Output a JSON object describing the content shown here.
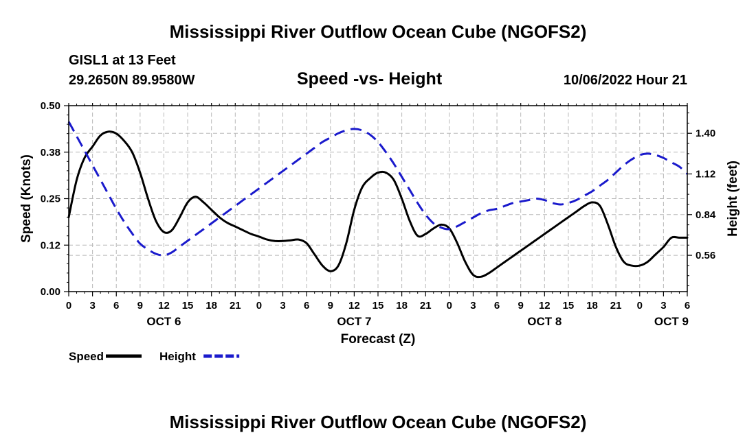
{
  "header": {
    "title_top": "Mississippi River Outflow Ocean Cube (NGOFS2)",
    "station": "GISL1 at 13 Feet",
    "coords": "29.2650N  89.9580W",
    "subtitle": "Speed -vs- Height",
    "datetime": "10/06/2022 Hour 21",
    "title_bottom": "Mississippi River Outflow Ocean Cube (NGOFS2)"
  },
  "chart_data": {
    "type": "line",
    "title": "Speed -vs- Height",
    "xlabel": "Forecast (Z)",
    "ylabel": "Speed (Knots)",
    "y2label": "Height (feet)",
    "x_range": [
      0,
      78
    ],
    "ylim": [
      0,
      0.5
    ],
    "y2lim": [
      0.31,
      1.59
    ],
    "x_tick_hours": [
      0,
      3,
      6,
      9,
      12,
      15,
      18,
      21,
      24,
      27,
      30,
      33,
      36,
      39,
      42,
      45,
      48,
      51,
      54,
      57,
      60,
      63,
      66,
      69,
      72,
      75,
      78
    ],
    "x_tick_labels": [
      "0",
      "3",
      "6",
      "9",
      "12",
      "15",
      "18",
      "21",
      "0",
      "3",
      "6",
      "9",
      "12",
      "15",
      "18",
      "21",
      "0",
      "3",
      "6",
      "9",
      "12",
      "15",
      "18",
      "21",
      "0",
      "3",
      "6"
    ],
    "day_labels": [
      {
        "label": "OCT 6",
        "hour": 12
      },
      {
        "label": "OCT 7",
        "hour": 36
      },
      {
        "label": "OCT 8",
        "hour": 60
      },
      {
        "label": "OCT 9",
        "hour": 76
      }
    ],
    "y_ticks": [
      0.0,
      0.125,
      0.25,
      0.375,
      0.5
    ],
    "y_tick_labels": [
      "0.00",
      "0.12",
      "0.25",
      "0.38",
      "0.50"
    ],
    "y2_ticks": [
      0.56,
      0.84,
      1.12,
      1.4
    ],
    "y2_tick_labels": [
      "0.56",
      "0.84",
      "1.12",
      "1.40"
    ],
    "series": [
      {
        "name": "Speed",
        "axis": "left",
        "color": "#000000",
        "dash": false,
        "x": [
          0,
          1,
          2,
          3,
          4,
          5,
          6,
          7,
          8,
          9,
          10,
          11,
          12,
          13,
          14,
          15,
          16,
          17,
          18,
          19,
          20,
          21,
          22,
          23,
          24,
          25,
          26,
          27,
          28,
          29,
          30,
          31,
          32,
          33,
          34,
          35,
          36,
          37,
          38,
          39,
          40,
          41,
          42,
          43,
          44,
          45,
          46,
          47,
          48,
          49,
          50,
          51,
          52,
          53,
          54,
          55,
          56,
          57,
          58,
          59,
          60,
          61,
          62,
          63,
          64,
          65,
          66,
          67,
          68,
          69,
          70,
          71,
          72,
          73,
          74,
          75,
          76,
          77,
          78
        ],
        "values": [
          0.2,
          0.3,
          0.36,
          0.39,
          0.42,
          0.43,
          0.425,
          0.405,
          0.375,
          0.32,
          0.25,
          0.19,
          0.16,
          0.165,
          0.2,
          0.24,
          0.255,
          0.24,
          0.22,
          0.2,
          0.185,
          0.175,
          0.165,
          0.155,
          0.148,
          0.14,
          0.136,
          0.136,
          0.138,
          0.14,
          0.13,
          0.1,
          0.07,
          0.055,
          0.07,
          0.13,
          0.22,
          0.28,
          0.305,
          0.32,
          0.32,
          0.3,
          0.25,
          0.19,
          0.15,
          0.155,
          0.17,
          0.18,
          0.17,
          0.13,
          0.08,
          0.045,
          0.04,
          0.05,
          0.065,
          0.08,
          0.095,
          0.11,
          0.125,
          0.14,
          0.155,
          0.17,
          0.185,
          0.2,
          0.215,
          0.23,
          0.24,
          0.23,
          0.18,
          0.12,
          0.08,
          0.07,
          0.07,
          0.08,
          0.1,
          0.12,
          0.145,
          0.145,
          0.145
        ]
      },
      {
        "name": "Height",
        "axis": "right",
        "color": "#1a1acc",
        "dash": true,
        "x": [
          0,
          1,
          2,
          3,
          4,
          5,
          6,
          7,
          8,
          9,
          10,
          11,
          12,
          13,
          14,
          15,
          16,
          17,
          18,
          19,
          20,
          21,
          22,
          23,
          24,
          25,
          26,
          27,
          28,
          29,
          30,
          31,
          32,
          33,
          34,
          35,
          36,
          37,
          38,
          39,
          40,
          41,
          42,
          43,
          44,
          45,
          46,
          47,
          48,
          49,
          50,
          51,
          52,
          53,
          54,
          55,
          56,
          57,
          58,
          59,
          60,
          61,
          62,
          63,
          64,
          65,
          66,
          67,
          68,
          69,
          70,
          71,
          72,
          73,
          74,
          75,
          76,
          77,
          78
        ],
        "values": [
          1.48,
          1.38,
          1.28,
          1.18,
          1.08,
          0.98,
          0.88,
          0.79,
          0.71,
          0.64,
          0.6,
          0.57,
          0.56,
          0.58,
          0.62,
          0.66,
          0.7,
          0.74,
          0.78,
          0.82,
          0.86,
          0.9,
          0.94,
          0.98,
          1.02,
          1.06,
          1.1,
          1.14,
          1.18,
          1.22,
          1.26,
          1.3,
          1.34,
          1.37,
          1.4,
          1.42,
          1.43,
          1.42,
          1.39,
          1.34,
          1.27,
          1.19,
          1.1,
          1.01,
          0.92,
          0.84,
          0.78,
          0.75,
          0.74,
          0.76,
          0.79,
          0.82,
          0.85,
          0.87,
          0.88,
          0.9,
          0.92,
          0.93,
          0.94,
          0.95,
          0.94,
          0.92,
          0.91,
          0.92,
          0.94,
          0.97,
          1.0,
          1.04,
          1.08,
          1.13,
          1.18,
          1.22,
          1.25,
          1.26,
          1.25,
          1.23,
          1.2,
          1.17,
          1.12
        ]
      }
    ],
    "legend": [
      {
        "label": "Speed",
        "color": "#000000",
        "dash": false
      },
      {
        "label": "Height",
        "color": "#1a1acc",
        "dash": true
      }
    ]
  }
}
